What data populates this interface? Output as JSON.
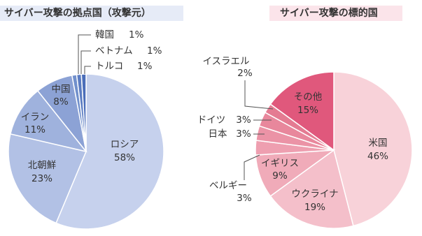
{
  "chart_data": [
    {
      "type": "pie",
      "title": "サイバー攻撃の拠点国（攻撃元）",
      "categories": [
        "ロシア",
        "北朝鮮",
        "イラン",
        "中国",
        "韓国",
        "ベトナム",
        "トルコ"
      ],
      "values": [
        58,
        23,
        11,
        8,
        1,
        1,
        1
      ],
      "value_labels": [
        "58%",
        "23%",
        "11%",
        "8%",
        "1%",
        "1%",
        "1%"
      ],
      "colors": [
        "#c6d1ed",
        "#b2c1e5",
        "#9fb2dd",
        "#8ca2d5",
        "#7190cc",
        "#5b7cc2",
        "#4a6db9"
      ],
      "title_color": "#4a6db9"
    },
    {
      "type": "pie",
      "title": "サイバー攻撃の標的国",
      "categories": [
        "米国",
        "ウクライナ",
        "イギリス",
        "ベルギー",
        "日本",
        "ドイツ",
        "イスラエル",
        "その他"
      ],
      "values": [
        46,
        19,
        9,
        3,
        3,
        3,
        2,
        15
      ],
      "value_labels": [
        "46%",
        "19%",
        "9%",
        "3%",
        "3%",
        "3%",
        "2%",
        "15%"
      ],
      "colors": [
        "#f8d2d9",
        "#f4bfca",
        "#f0abb9",
        "#ee9fb0",
        "#eb93a6",
        "#e8879c",
        "#e47b92",
        "#e0587c"
      ],
      "title_color": "#e05a86"
    }
  ]
}
